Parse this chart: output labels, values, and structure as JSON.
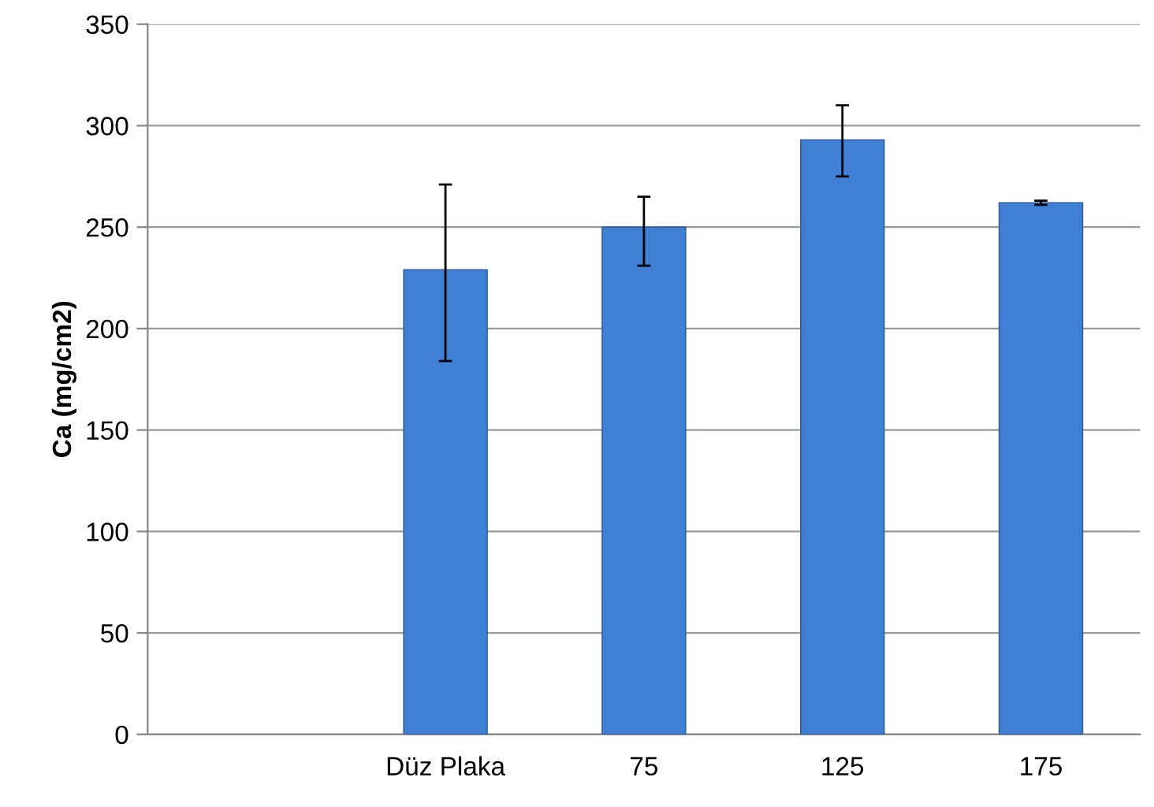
{
  "chart_data": {
    "type": "bar",
    "ylabel": "Ca (mg/cm2)",
    "categories": [
      null,
      "Düz Plaka",
      "75",
      "125",
      "175"
    ],
    "values": [
      null,
      229,
      250,
      293,
      262
    ],
    "errors": [
      null,
      [
        184,
        271
      ],
      [
        231,
        265
      ],
      [
        275,
        310
      ],
      1
    ],
    "color": "#3f7fd4",
    "ylim": [
      0,
      350
    ],
    "yticks": [
      0,
      50,
      100,
      150,
      200,
      250,
      300,
      350
    ],
    "grid": "y",
    "legend": false
  }
}
